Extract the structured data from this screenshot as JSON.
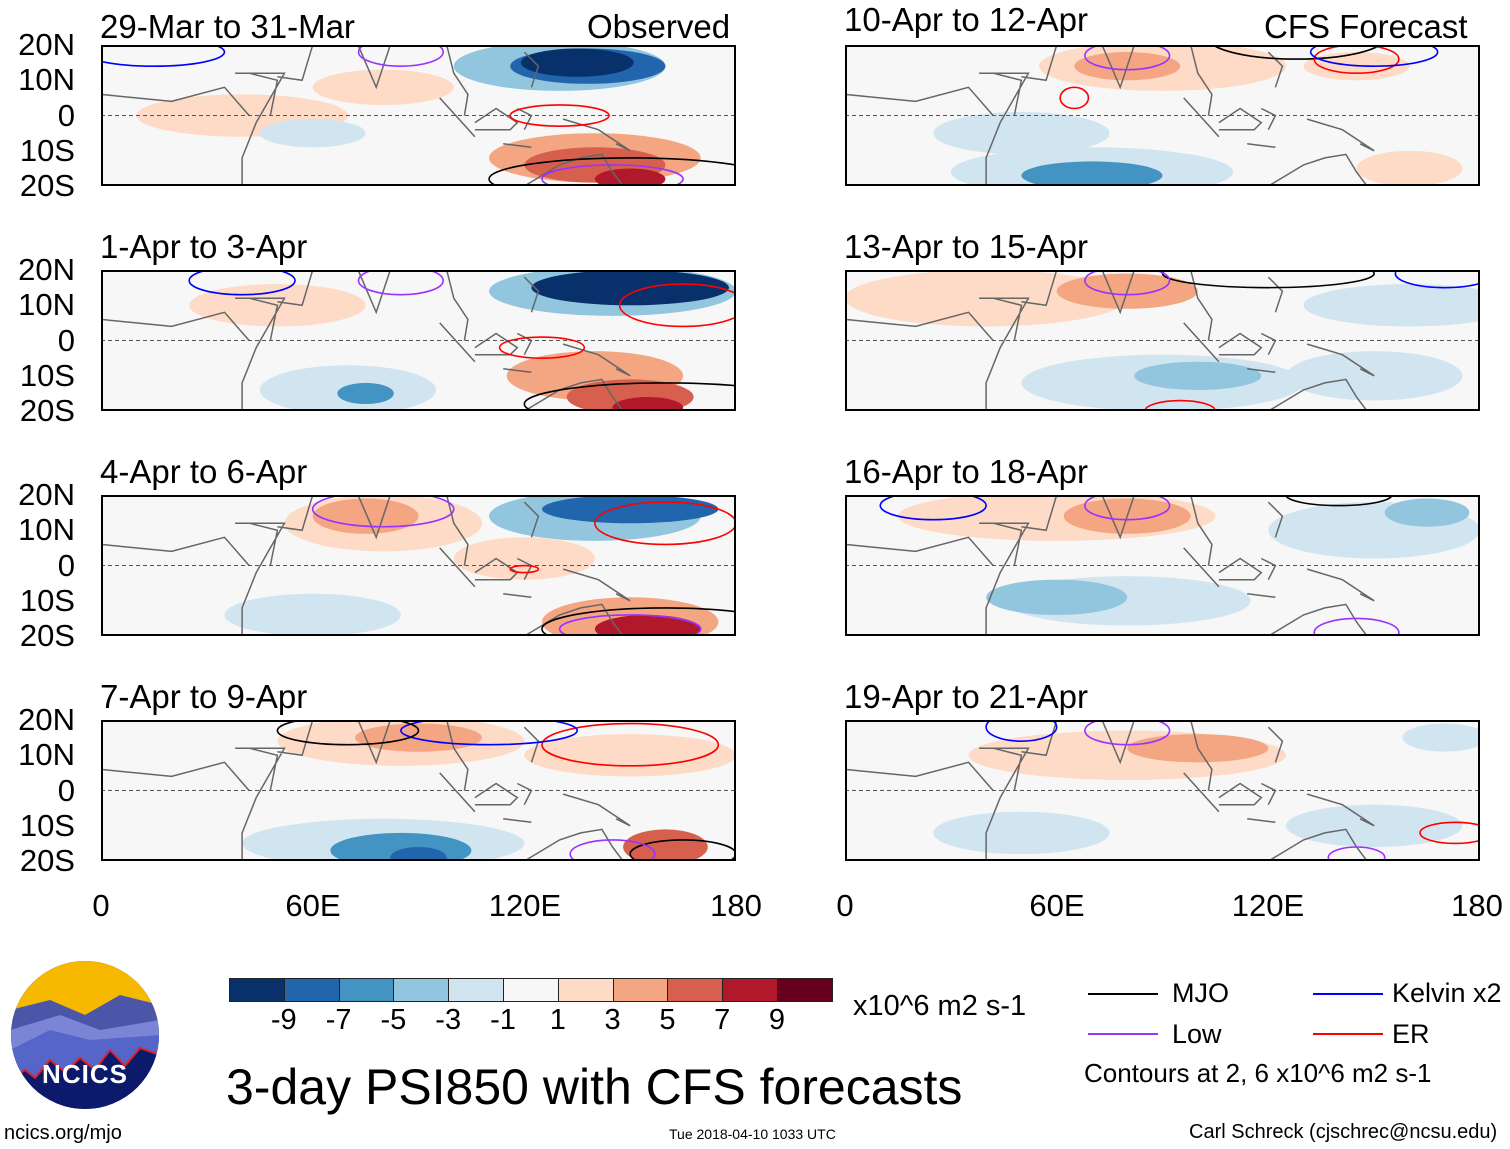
{
  "figure": {
    "title": "3-day PSI850 with CFS forecasts",
    "timestamp": "Tue 2018-04-10 1033 UTC",
    "website": "ncics.org/mjo",
    "logo_text": "NCICS",
    "author": "Carl Schreck (cjschrec@ncsu.edu)"
  },
  "columns": {
    "left_label": "Observed",
    "right_label": "CFS Forecast"
  },
  "panels": {
    "left": [
      "29-Mar to 31-Mar",
      "1-Apr to 3-Apr",
      "4-Apr to 6-Apr",
      "7-Apr to 9-Apr"
    ],
    "right": [
      "10-Apr to 12-Apr",
      "13-Apr to 15-Apr",
      "16-Apr to 18-Apr",
      "19-Apr to 21-Apr"
    ]
  },
  "axes": {
    "lat_labels": [
      "20N",
      "10N",
      "0",
      "10S",
      "20S"
    ],
    "lon_labels": [
      "0",
      "60E",
      "120E",
      "180"
    ],
    "lon_range": [
      0,
      180
    ],
    "lat_range": [
      -20,
      20
    ]
  },
  "colorbar": {
    "unit": "x10^6 m2 s-1",
    "tick_labels": [
      "-9",
      "-7",
      "-5",
      "-3",
      "-1",
      "1",
      "3",
      "5",
      "7",
      "9"
    ],
    "colors": [
      "#08306b",
      "#2166ac",
      "#4393c3",
      "#92c5de",
      "#d1e5f0",
      "#f7f7f7",
      "#fddbc7",
      "#f4a582",
      "#d6604d",
      "#b2182b",
      "#67001f"
    ]
  },
  "legend": {
    "items": [
      {
        "label": "MJO",
        "color": "#000000"
      },
      {
        "label": "Kelvin x2",
        "color": "#0000ff"
      },
      {
        "label": "Low",
        "color": "#9933ff"
      },
      {
        "label": "ER",
        "color": "#ff0000"
      }
    ],
    "note": "Contours at 2, 6 x10^6 m2 s-1"
  }
}
